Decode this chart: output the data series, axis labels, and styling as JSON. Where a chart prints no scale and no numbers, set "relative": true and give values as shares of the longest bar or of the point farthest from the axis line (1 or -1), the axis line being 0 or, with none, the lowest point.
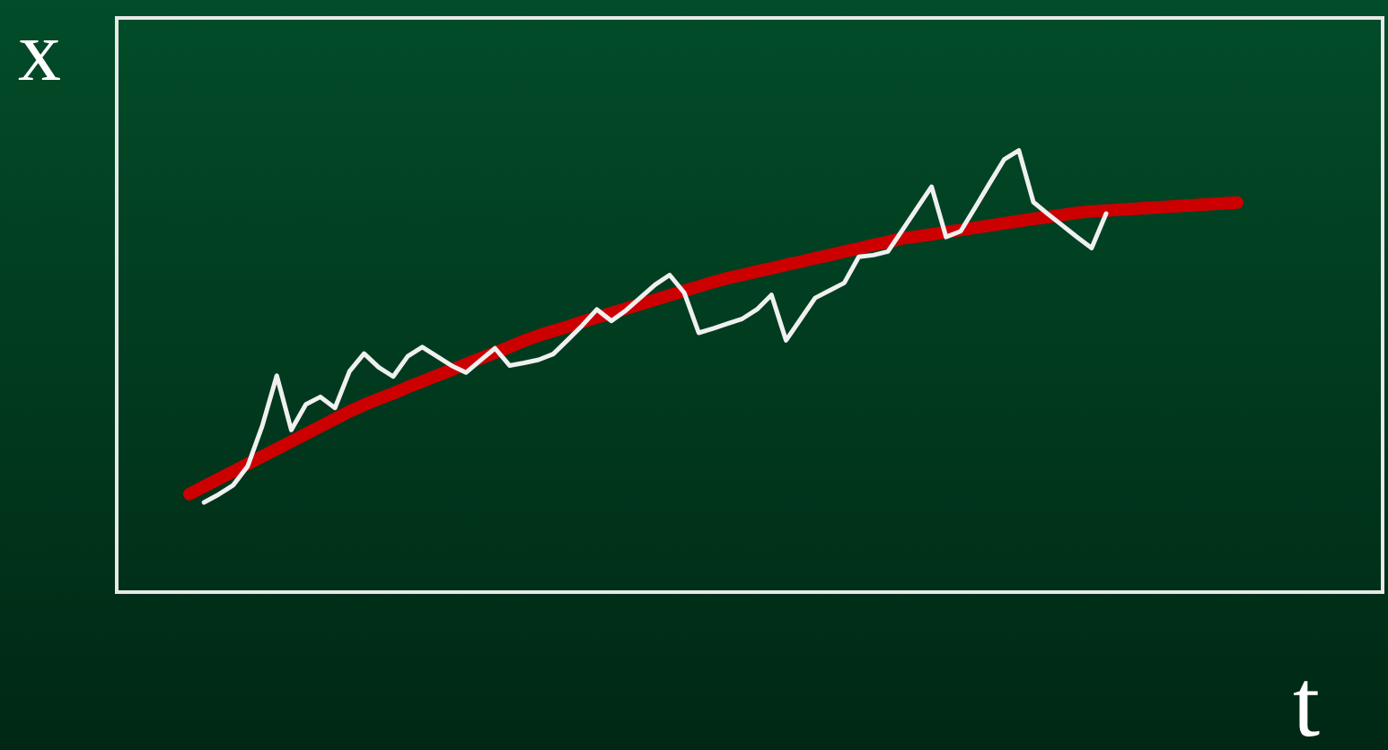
{
  "chart_data": {
    "type": "line",
    "relative": true,
    "xlabel": "t",
    "ylabel": "x",
    "grid": false,
    "line_style": "solid",
    "categories": [
      null,
      null,
      null,
      null,
      null,
      null,
      null,
      null,
      null,
      null,
      null,
      null,
      null,
      null,
      null,
      null,
      null,
      null,
      null,
      null,
      null,
      null,
      null,
      null,
      null,
      null,
      null,
      null,
      null,
      null,
      null,
      null,
      null,
      null,
      null,
      null,
      null,
      null,
      null,
      null,
      null,
      null,
      null,
      null,
      null,
      null,
      null,
      null,
      null,
      null,
      null,
      null,
      null,
      null,
      null,
      null,
      null,
      null,
      null,
      null,
      null,
      null,
      null,
      null,
      null,
      null,
      null,
      null,
      null,
      null,
      null,
      null,
      null,
      null,
      null,
      null,
      null,
      null,
      null,
      null,
      null,
      null,
      null,
      null,
      null,
      null,
      null,
      null
    ],
    "series": [
      {
        "color": "#cc0000",
        "values": [
          null,
          null,
          null,
          null,
          null,
          0.222,
          0.239,
          0.256,
          0.273,
          0.29,
          0.307,
          0.324,
          0.341,
          0.358,
          0.375,
          0.392,
          0.409,
          0.424,
          0.437,
          0.45,
          0.464,
          0.477,
          0.49,
          0.503,
          0.516,
          0.529,
          0.542,
          0.555,
          0.569,
          0.581,
          0.591,
          0.601,
          0.612,
          0.622,
          0.632,
          0.642,
          0.652,
          0.662,
          0.672,
          0.682,
          0.692,
          0.702,
          0.711,
          0.718,
          0.726,
          0.733,
          0.741,
          0.748,
          0.756,
          0.763,
          0.771,
          0.778,
          0.786,
          0.793,
          0.801,
          0.805,
          0.81,
          0.815,
          0.82,
          0.825,
          0.83,
          0.835,
          0.84,
          0.845,
          0.849,
          0.854,
          0.859,
          0.862,
          0.864,
          0.866,
          0.868,
          0.87,
          0.872,
          0.874,
          0.876,
          0.878,
          0.88,
          0.882,
          null,
          null,
          null,
          null,
          null,
          null,
          null,
          null,
          null,
          null
        ]
      },
      {
        "color": "#f0f0f0",
        "values": [
          null,
          null,
          null,
          null,
          null,
          null,
          0.203,
          0.221,
          0.242,
          0.285,
          0.376,
          0.49,
          0.367,
          0.425,
          0.442,
          0.417,
          0.5,
          0.54,
          0.509,
          0.488,
          0.534,
          0.555,
          0.534,
          0.513,
          0.497,
          0.525,
          0.552,
          0.513,
          0.519,
          0.526,
          0.539,
          0.571,
          0.604,
          0.64,
          0.614,
          0.638,
          0.667,
          0.696,
          0.718,
          0.678,
          0.587,
          0.597,
          0.608,
          0.619,
          0.64,
          0.673,
          0.57,
          0.618,
          0.666,
          0.683,
          0.7,
          0.759,
          0.763,
          0.771,
          0.82,
          0.869,
          0.918,
          0.804,
          0.817,
          0.871,
          0.926,
          0.98,
          1,
          0.883,
          0.856,
          0.83,
          0.804,
          0.779,
          0.857,
          null,
          null,
          null,
          null,
          null,
          null,
          null,
          null,
          null,
          null,
          null,
          null,
          null,
          null,
          null,
          null,
          null,
          null,
          null
        ]
      }
    ]
  }
}
